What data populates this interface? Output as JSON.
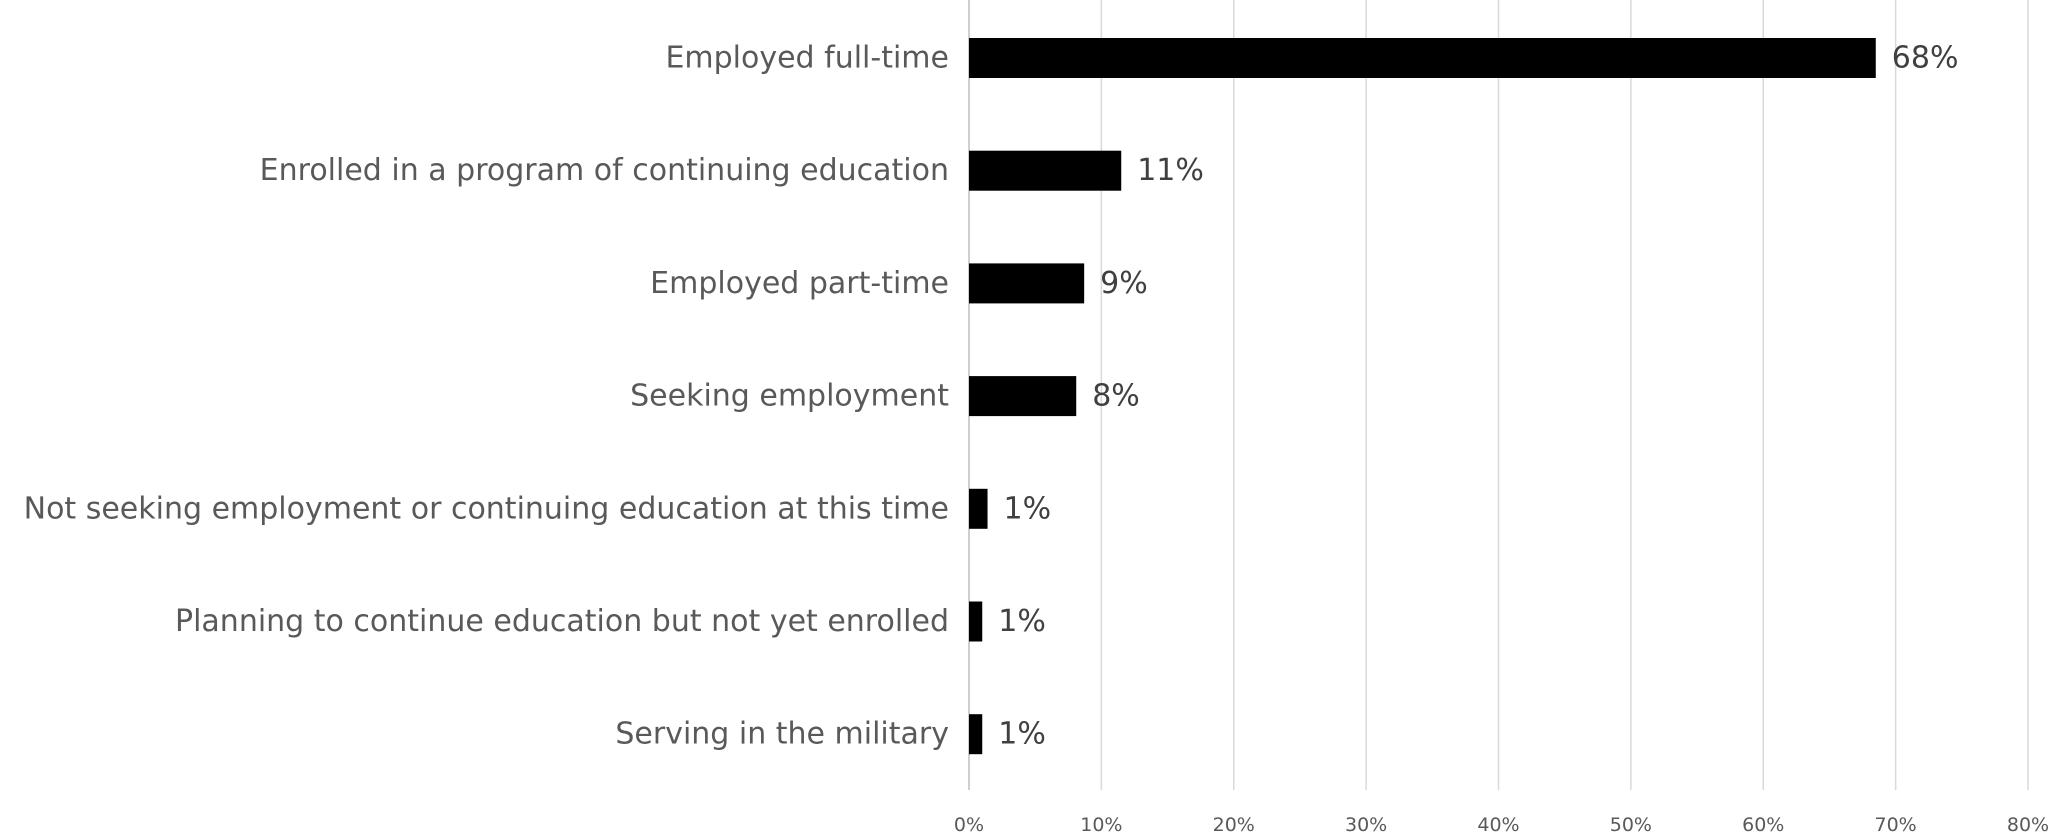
{
  "chart_data": {
    "type": "bar",
    "orientation": "horizontal",
    "categories": [
      "Employed full-time",
      "Enrolled in a program of continuing education",
      "Employed part-time",
      "Seeking employment",
      "Not seeking employment or continuing education at this time",
      "Planning to continue education but not yet enrolled",
      "Serving in the military"
    ],
    "values": [
      68.5,
      11.5,
      8.7,
      8.1,
      1.4,
      1.0,
      1.0
    ],
    "data_labels": [
      "68%",
      "11%",
      "9%",
      "8%",
      "1%",
      "1%",
      "1%"
    ],
    "xlim": [
      0,
      80
    ],
    "xticks": [
      0,
      10,
      20,
      30,
      40,
      50,
      60,
      70,
      80
    ],
    "xtick_labels": [
      "0%",
      "10%",
      "20%",
      "30%",
      "40%",
      "50%",
      "60%",
      "70%",
      "80%"
    ],
    "grid": true,
    "bar_color": "#000000",
    "grid_color": "#d9d9d9"
  }
}
